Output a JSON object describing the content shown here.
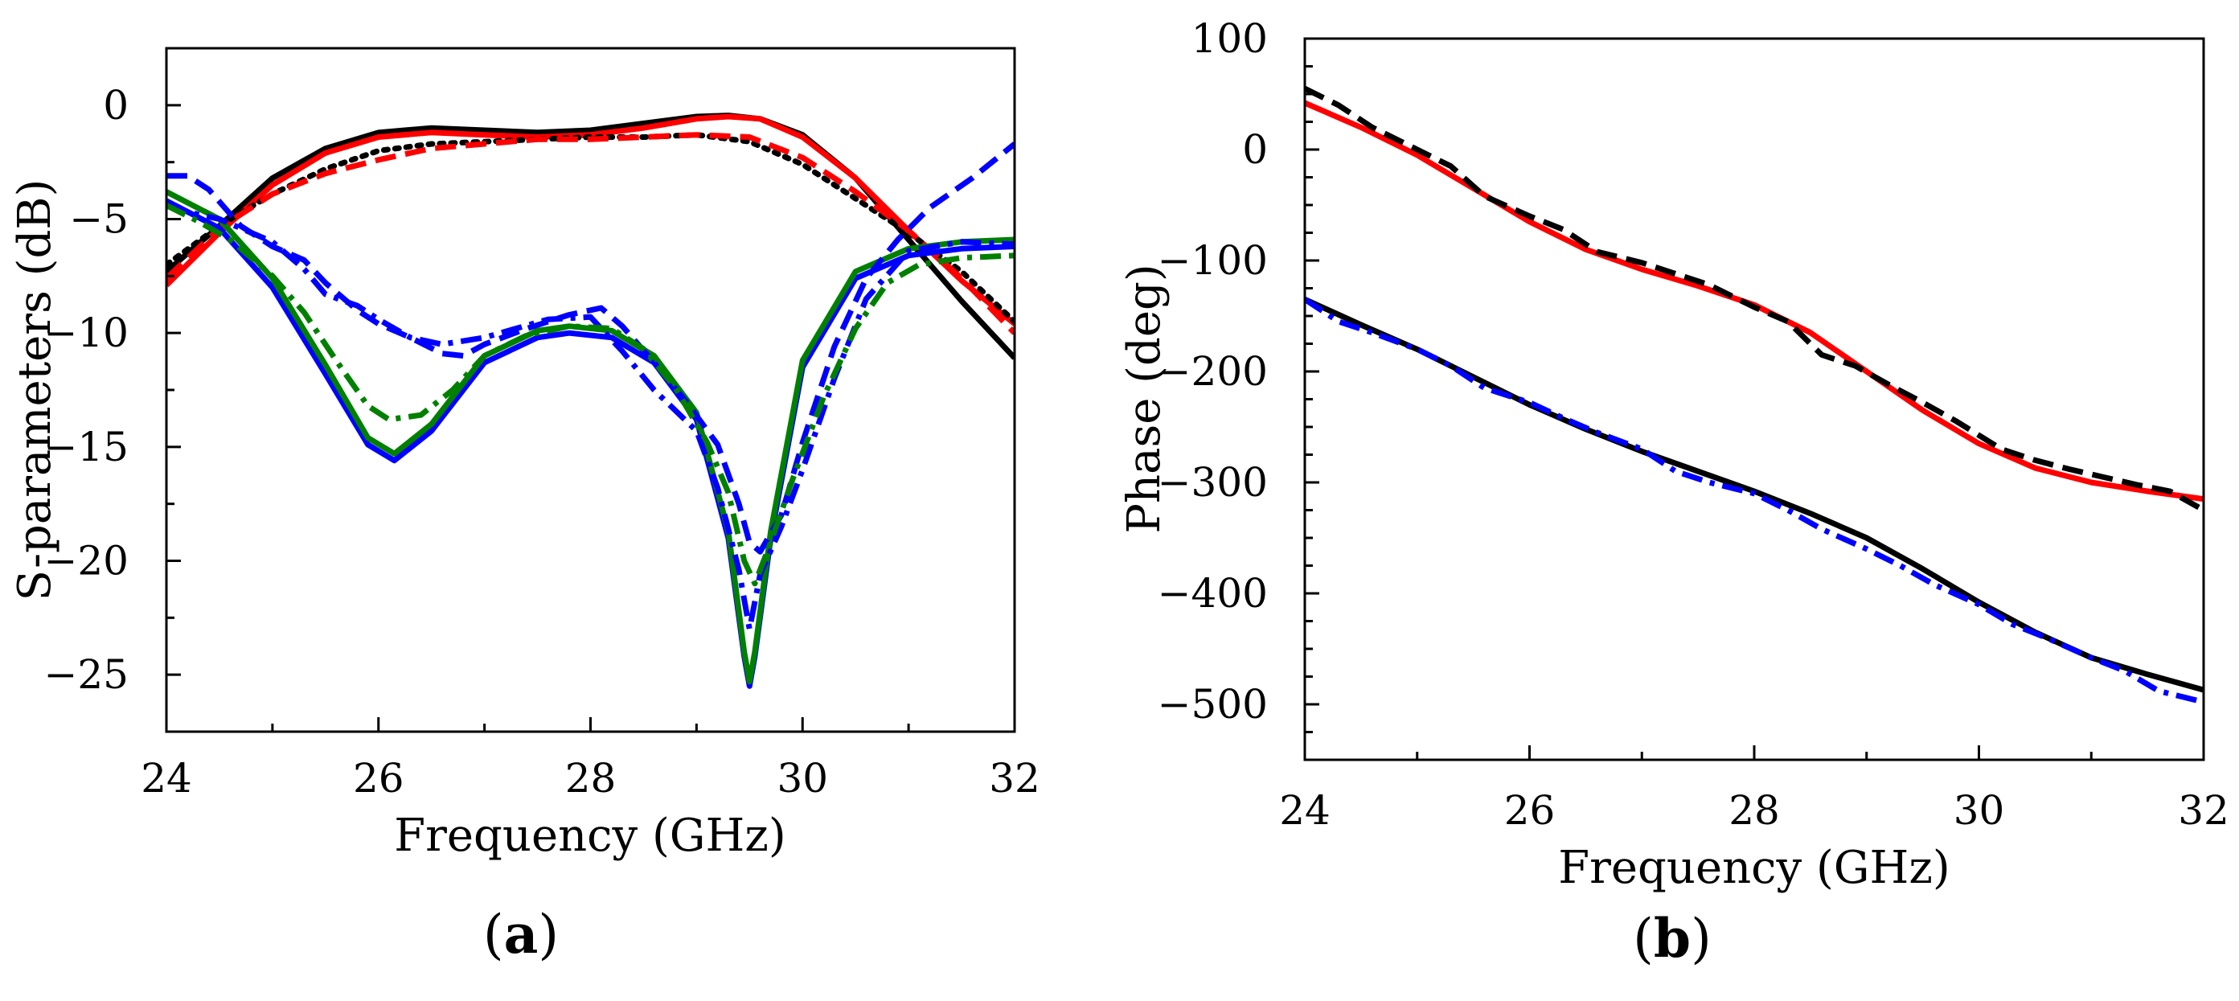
{
  "chart_data": [
    {
      "type": "line",
      "panel": "a",
      "panel_label": "(a)",
      "panel_label_parts": {
        "open": "(",
        "letter": "a",
        "close": ")"
      },
      "xlabel": "Frequency (GHz)",
      "ylabel": "S-parameters (dB)",
      "xlim": [
        24,
        32
      ],
      "ylim": [
        -27.5,
        2.5
      ],
      "xticks": [
        24,
        26,
        28,
        30,
        32
      ],
      "xtick_labels": [
        "24",
        "26",
        "28",
        "30",
        "32"
      ],
      "yticks": [
        0,
        -5,
        -10,
        -15,
        -20,
        -25
      ],
      "ytick_labels": [
        "0",
        "−5",
        "−10",
        "−15",
        "−20",
        "−25"
      ],
      "legend": "none",
      "series": [
        {
          "name": "black solid",
          "color": "#000000",
          "dash": "solid",
          "x": [
            24,
            24.5,
            25,
            25.5,
            26,
            26.5,
            27,
            27.5,
            28,
            28.5,
            29,
            29.3,
            29.6,
            30,
            30.5,
            31,
            31.5,
            32
          ],
          "y": [
            -7.3,
            -5.3,
            -3.2,
            -1.9,
            -1.2,
            -1.0,
            -1.1,
            -1.2,
            -1.1,
            -0.8,
            -0.5,
            -0.45,
            -0.6,
            -1.3,
            -3.2,
            -5.9,
            -8.6,
            -11.1
          ]
        },
        {
          "name": "red solid",
          "color": "#ff0000",
          "dash": "solid",
          "x": [
            24,
            24.5,
            25,
            25.5,
            26,
            26.5,
            27,
            27.5,
            28,
            28.5,
            29,
            29.3,
            29.6,
            30,
            30.5,
            31,
            31.5,
            32
          ],
          "y": [
            -7.9,
            -5.6,
            -3.5,
            -2.1,
            -1.4,
            -1.2,
            -1.3,
            -1.4,
            -1.3,
            -1.0,
            -0.6,
            -0.5,
            -0.6,
            -1.4,
            -3.2,
            -5.5,
            -7.7,
            -9.6
          ]
        },
        {
          "name": "black dotted",
          "color": "#000000",
          "dash": "dotted",
          "x": [
            24,
            24.5,
            25,
            25.5,
            26,
            26.5,
            27,
            27.5,
            28,
            28.5,
            29,
            29.5,
            30,
            30.5,
            31,
            31.5,
            32
          ],
          "y": [
            -7.0,
            -5.3,
            -3.9,
            -2.8,
            -2.0,
            -1.7,
            -1.6,
            -1.5,
            -1.4,
            -1.4,
            -1.3,
            -1.6,
            -2.6,
            -4.1,
            -5.6,
            -7.3,
            -9.5
          ]
        },
        {
          "name": "red dashed",
          "color": "#ff0000",
          "dash": "dashed",
          "x": [
            24,
            24.5,
            25,
            25.5,
            26,
            26.5,
            27,
            27.5,
            28,
            28.5,
            29,
            29.5,
            30,
            30.5,
            31,
            31.5,
            32
          ],
          "y": [
            -7.6,
            -5.4,
            -3.9,
            -3.0,
            -2.4,
            -1.9,
            -1.7,
            -1.5,
            -1.5,
            -1.4,
            -1.3,
            -1.4,
            -2.3,
            -3.8,
            -5.5,
            -7.6,
            -10.0
          ]
        },
        {
          "name": "blue solid",
          "color": "#0000ff",
          "dash": "solid",
          "x": [
            24,
            24.5,
            25,
            25.5,
            25.9,
            26.15,
            26.5,
            27,
            27.5,
            27.8,
            28.2,
            28.6,
            29,
            29.3,
            29.45,
            29.5,
            29.55,
            29.7,
            30,
            30.5,
            31,
            31.5,
            32
          ],
          "y": [
            -4.2,
            -5.4,
            -8.0,
            -11.8,
            -14.9,
            -15.6,
            -14.3,
            -11.3,
            -10.2,
            -10.0,
            -10.2,
            -11.3,
            -13.8,
            -19.0,
            -24.2,
            -25.5,
            -24.2,
            -19.0,
            -11.5,
            -7.6,
            -6.6,
            -6.3,
            -6.2
          ]
        },
        {
          "name": "green solid",
          "color": "#008000",
          "dash": "solid",
          "x": [
            24,
            24.5,
            25,
            25.5,
            25.9,
            26.15,
            26.5,
            27,
            27.5,
            27.8,
            28.2,
            28.6,
            29,
            29.3,
            29.45,
            29.5,
            29.55,
            29.7,
            30,
            30.5,
            31,
            31.5,
            32
          ],
          "y": [
            -3.8,
            -5.0,
            -7.6,
            -11.4,
            -14.6,
            -15.3,
            -14.0,
            -11.0,
            -9.9,
            -9.7,
            -9.9,
            -11.0,
            -13.5,
            -18.7,
            -24.0,
            -25.3,
            -24.0,
            -18.7,
            -11.2,
            -7.3,
            -6.3,
            -6.0,
            -5.9
          ]
        },
        {
          "name": "blue dash-dot",
          "color": "#0000ff",
          "dash": "dashdot",
          "x": [
            24,
            24.3,
            24.5,
            25,
            25.3,
            25.5,
            25.8,
            26,
            26.3,
            26.6,
            27,
            27.3,
            27.6,
            28,
            28.3,
            28.6,
            29,
            29.2,
            29.4,
            29.5,
            29.6,
            29.8,
            30,
            30.3,
            30.6,
            31,
            31.5,
            32
          ],
          "y": [
            -4.4,
            -4.8,
            -5.0,
            -6.0,
            -7.2,
            -8.3,
            -8.8,
            -9.4,
            -10.2,
            -10.5,
            -10.2,
            -9.8,
            -9.4,
            -9.3,
            -10.8,
            -12.5,
            -14.3,
            -16.8,
            -20.4,
            -23.0,
            -20.6,
            -18.5,
            -16.0,
            -12.0,
            -8.5,
            -6.4,
            -6.0,
            -6.1
          ]
        },
        {
          "name": "blue dashed",
          "color": "#0000ff",
          "dash": "dashed",
          "x": [
            24,
            24.2,
            24.4,
            24.7,
            25,
            25.3,
            25.5,
            25.8,
            26,
            26.3,
            26.6,
            26.8,
            27,
            27.4,
            27.8,
            28.1,
            28.3,
            28.6,
            28.9,
            29.2,
            29.4,
            29.5,
            29.6,
            29.8,
            30,
            30.3,
            30.6,
            30.9,
            31.2,
            31.6,
            32
          ],
          "y": [
            -3.1,
            -3.1,
            -3.7,
            -5.3,
            -6.2,
            -6.8,
            -7.8,
            -9.0,
            -9.6,
            -10.2,
            -10.9,
            -11.0,
            -10.5,
            -9.8,
            -9.2,
            -8.9,
            -9.7,
            -11.3,
            -13.0,
            -14.9,
            -17.5,
            -19.2,
            -19.6,
            -18.0,
            -14.8,
            -10.6,
            -7.6,
            -5.9,
            -4.5,
            -3.2,
            -1.7
          ]
        },
        {
          "name": "green dash-dot",
          "color": "#008000",
          "dash": "dashdot",
          "x": [
            24,
            24.3,
            24.6,
            25,
            25.3,
            25.6,
            25.9,
            26.1,
            26.4,
            26.7,
            27,
            27.4,
            27.8,
            28.2,
            28.5,
            28.8,
            29.1,
            29.3,
            29.45,
            29.55,
            29.7,
            29.9,
            30.2,
            30.5,
            30.8,
            31.1,
            31.5,
            32
          ],
          "y": [
            -4.4,
            -5.1,
            -5.9,
            -7.5,
            -9.1,
            -11.2,
            -13.2,
            -13.8,
            -13.6,
            -12.5,
            -11.0,
            -10.1,
            -9.7,
            -9.8,
            -10.7,
            -12.4,
            -14.8,
            -17.0,
            -20.0,
            -21.0,
            -19.2,
            -16.5,
            -12.8,
            -9.8,
            -7.8,
            -7.0,
            -6.7,
            -6.6
          ]
        }
      ]
    },
    {
      "type": "line",
      "panel": "b",
      "panel_label": "(b)",
      "panel_label_parts": {
        "open": "(",
        "letter": "b",
        "close": ")"
      },
      "xlabel": "Frequency (GHz)",
      "ylabel": "Phase (deg)",
      "xlim": [
        24,
        32
      ],
      "ylim": [
        -550,
        100
      ],
      "xticks": [
        24,
        26,
        28,
        30,
        32
      ],
      "xtick_labels": [
        "24",
        "26",
        "28",
        "30",
        "32"
      ],
      "yticks": [
        100,
        0,
        -100,
        -200,
        -300,
        -400,
        -500
      ],
      "ytick_labels": [
        "100",
        "0",
        "−100",
        "−200",
        "−300",
        "−400",
        "−500"
      ],
      "legend": "none",
      "series": [
        {
          "name": "red solid",
          "color": "#ff0000",
          "dash": "solid",
          "x": [
            24,
            24.5,
            25,
            25.5,
            26,
            26.5,
            27,
            27.5,
            28,
            28.5,
            29,
            29.5,
            30,
            30.5,
            31,
            31.5,
            32
          ],
          "y": [
            42,
            20,
            -5,
            -35,
            -65,
            -90,
            -108,
            -123,
            -140,
            -165,
            -200,
            -235,
            -265,
            -287,
            -300,
            -308,
            -315
          ]
        },
        {
          "name": "black dashed",
          "color": "#000000",
          "dash": "dashed",
          "x": [
            24,
            24.3,
            24.6,
            25,
            25.3,
            25.6,
            26,
            26.3,
            26.6,
            27,
            27.3,
            27.6,
            28,
            28.3,
            28.6,
            28.9,
            29.2,
            29.5,
            29.8,
            30.2,
            30.5,
            30.8,
            31.1,
            31.4,
            31.7,
            32
          ],
          "y": [
            55,
            40,
            20,
            0,
            -15,
            -42,
            -60,
            -72,
            -92,
            -102,
            -112,
            -122,
            -142,
            -155,
            -185,
            -195,
            -212,
            -228,
            -245,
            -270,
            -280,
            -288,
            -295,
            -302,
            -308,
            -325
          ]
        },
        {
          "name": "black solid",
          "color": "#000000",
          "dash": "solid",
          "x": [
            24,
            24.5,
            25,
            25.5,
            26,
            26.5,
            27,
            27.5,
            28,
            28.5,
            29,
            29.5,
            30,
            30.5,
            31,
            31.5,
            32
          ],
          "y": [
            -135,
            -158,
            -180,
            -205,
            -230,
            -252,
            -272,
            -290,
            -308,
            -328,
            -350,
            -378,
            -408,
            -435,
            -458,
            -473,
            -487
          ]
        },
        {
          "name": "blue dash-dot",
          "color": "#0000ff",
          "dash": "dashdot",
          "x": [
            24,
            24.3,
            24.6,
            25,
            25.3,
            25.6,
            26,
            26.3,
            26.6,
            27,
            27.3,
            27.6,
            28,
            28.3,
            28.6,
            29,
            29.3,
            29.6,
            30,
            30.3,
            30.6,
            31,
            31.3,
            31.6,
            32
          ],
          "y": [
            -135,
            -155,
            -165,
            -180,
            -195,
            -215,
            -228,
            -242,
            -255,
            -270,
            -290,
            -300,
            -310,
            -325,
            -342,
            -360,
            -375,
            -392,
            -410,
            -428,
            -440,
            -458,
            -470,
            -488,
            -498
          ]
        }
      ]
    }
  ]
}
